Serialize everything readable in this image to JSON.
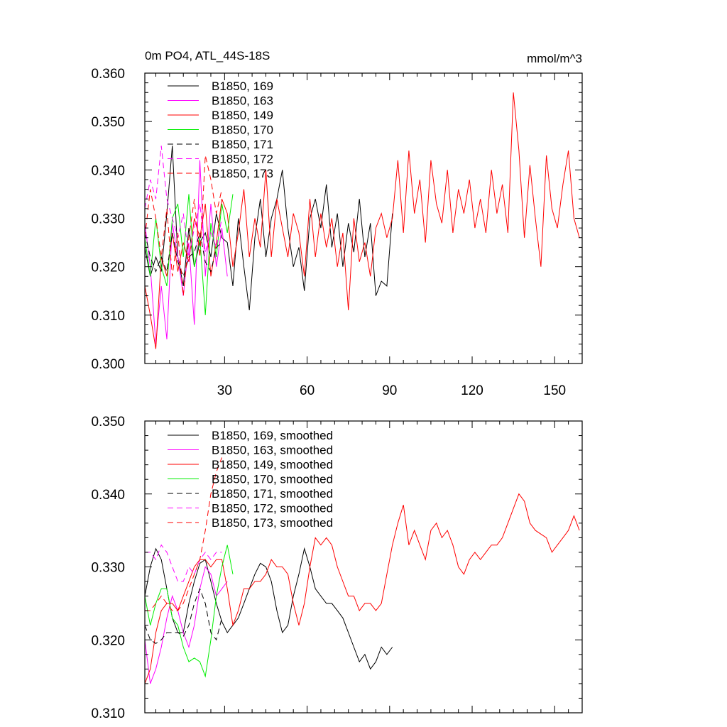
{
  "chart_data": [
    {
      "type": "line",
      "title": "0m PO4, ATL_44S-18S",
      "units": "mmol/m^3",
      "xlabel": "",
      "ylabel": "",
      "xlim": [
        1,
        160
      ],
      "ylim": [
        0.3,
        0.36
      ],
      "xticks": [
        30,
        60,
        90,
        120,
        150
      ],
      "xtick_labels": [
        "30",
        "60",
        "90",
        "120",
        "150"
      ],
      "yticks": [
        0.3,
        0.31,
        0.32,
        0.33,
        0.34,
        0.35,
        0.36
      ],
      "ytick_labels": [
        "0.300",
        "0.310",
        "0.320",
        "0.330",
        "0.340",
        "0.350",
        "0.360"
      ],
      "legend": "top-left",
      "series": [
        {
          "name": "B1850, 169",
          "color": "#000000",
          "dash": "solid",
          "x": [
            1,
            3,
            5,
            7,
            9,
            11,
            13,
            15,
            17,
            19,
            21,
            23,
            25,
            27,
            29,
            31,
            33,
            35,
            37,
            39,
            41,
            43,
            45,
            47,
            49,
            51,
            53,
            55,
            57,
            59,
            61,
            63,
            65,
            67,
            69,
            71,
            73,
            75,
            77,
            79,
            81,
            83,
            85,
            87,
            89,
            91
          ],
          "y": [
            0.324,
            0.318,
            0.322,
            0.319,
            0.331,
            0.345,
            0.322,
            0.316,
            0.328,
            0.32,
            0.325,
            0.327,
            0.322,
            0.331,
            0.326,
            0.325,
            0.316,
            0.33,
            0.32,
            0.311,
            0.326,
            0.334,
            0.322,
            0.33,
            0.334,
            0.34,
            0.328,
            0.32,
            0.324,
            0.315,
            0.33,
            0.334,
            0.328,
            0.337,
            0.324,
            0.331,
            0.32,
            0.329,
            0.323,
            0.334,
            0.322,
            0.329,
            0.314,
            0.317,
            0.316,
            0.331
          ]
        },
        {
          "name": "B1850, 163",
          "color": "#ff00ff",
          "dash": "solid",
          "x": [
            1,
            3,
            5,
            7,
            9,
            11,
            13,
            15,
            17,
            19,
            21,
            23,
            25,
            27,
            29,
            31
          ],
          "y": [
            0.329,
            0.32,
            0.304,
            0.316,
            0.305,
            0.329,
            0.322,
            0.314,
            0.325,
            0.308,
            0.342,
            0.318,
            0.333,
            0.32,
            0.328,
            0.318
          ]
        },
        {
          "name": "B1850, 149",
          "color": "#ff0000",
          "dash": "solid",
          "x": [
            1,
            3,
            5,
            7,
            9,
            11,
            13,
            15,
            17,
            19,
            21,
            23,
            25,
            27,
            29,
            31,
            33,
            35,
            37,
            39,
            41,
            43,
            45,
            47,
            49,
            51,
            53,
            55,
            57,
            59,
            61,
            63,
            65,
            67,
            69,
            71,
            73,
            75,
            77,
            79,
            81,
            83,
            85,
            87,
            89,
            91,
            93,
            95,
            97,
            99,
            101,
            103,
            105,
            107,
            109,
            111,
            113,
            115,
            117,
            119,
            121,
            123,
            125,
            127,
            129,
            131,
            133,
            135,
            137,
            139,
            141,
            143,
            145,
            147,
            149,
            151,
            153,
            155,
            157,
            159
          ],
          "y": [
            0.316,
            0.31,
            0.303,
            0.322,
            0.318,
            0.327,
            0.319,
            0.325,
            0.321,
            0.33,
            0.326,
            0.333,
            0.318,
            0.325,
            0.334,
            0.331,
            0.32,
            0.327,
            0.336,
            0.322,
            0.33,
            0.324,
            0.34,
            0.322,
            0.334,
            0.328,
            0.322,
            0.331,
            0.327,
            0.318,
            0.334,
            0.322,
            0.331,
            0.324,
            0.33,
            0.32,
            0.327,
            0.311,
            0.33,
            0.321,
            0.325,
            0.318,
            0.328,
            0.331,
            0.326,
            0.33,
            0.342,
            0.327,
            0.344,
            0.331,
            0.338,
            0.325,
            0.342,
            0.333,
            0.329,
            0.34,
            0.327,
            0.336,
            0.331,
            0.338,
            0.328,
            0.334,
            0.327,
            0.34,
            0.331,
            0.337,
            0.327,
            0.356,
            0.344,
            0.326,
            0.341,
            0.33,
            0.32,
            0.343,
            0.332,
            0.328,
            0.337,
            0.344,
            0.33,
            0.326
          ]
        },
        {
          "name": "B1850, 170",
          "color": "#00ee00",
          "dash": "solid",
          "x": [
            1,
            3,
            5,
            7,
            9,
            11,
            13,
            15,
            17,
            19,
            21,
            23,
            25,
            27,
            29,
            31,
            33
          ],
          "y": [
            0.326,
            0.318,
            0.33,
            0.32,
            0.316,
            0.33,
            0.333,
            0.322,
            0.335,
            0.32,
            0.326,
            0.31,
            0.329,
            0.322,
            0.333,
            0.327,
            0.335
          ]
        },
        {
          "name": "B1850, 171",
          "color": "#000000",
          "dash": "dashed",
          "x": [
            1,
            3,
            5,
            7,
            9,
            11,
            13,
            15,
            17,
            19,
            21,
            23,
            25,
            27,
            29
          ],
          "y": [
            0.327,
            0.322,
            0.319,
            0.322,
            0.319,
            0.327,
            0.321,
            0.318,
            0.322,
            0.323,
            0.327,
            0.321,
            0.319,
            0.324,
            0.325
          ]
        },
        {
          "name": "B1850, 172",
          "color": "#ff00ff",
          "dash": "dashed",
          "x": [
            1,
            3,
            5,
            7,
            9,
            11,
            13,
            15,
            17,
            19,
            21,
            23,
            25,
            27,
            29
          ],
          "y": [
            0.332,
            0.338,
            0.334,
            0.345,
            0.334,
            0.33,
            0.326,
            0.331,
            0.322,
            0.328,
            0.333,
            0.323,
            0.327,
            0.324,
            0.33
          ]
        },
        {
          "name": "B1850, 173",
          "color": "#ff0000",
          "dash": "dashed",
          "x": [
            1,
            3,
            5,
            7,
            9,
            11,
            13,
            15,
            17,
            19,
            21,
            23,
            25,
            27,
            29
          ],
          "y": [
            0.326,
            0.336,
            0.33,
            0.322,
            0.332,
            0.318,
            0.327,
            0.314,
            0.326,
            0.334,
            0.322,
            0.343,
            0.338,
            0.331,
            0.336
          ]
        }
      ]
    },
    {
      "type": "line",
      "title": "",
      "xlabel": "",
      "ylabel": "",
      "xlim": [
        1,
        160
      ],
      "ylim": [
        0.31,
        0.35
      ],
      "xticks": [
        30,
        60,
        90,
        120,
        150
      ],
      "xtick_labels": [],
      "yticks": [
        0.31,
        0.32,
        0.33,
        0.34,
        0.35
      ],
      "ytick_labels": [
        "0.310",
        "0.320",
        "0.330",
        "0.340",
        "0.350"
      ],
      "legend": "top-left",
      "series": [
        {
          "name": "B1850, 169, smoothed",
          "color": "#000000",
          "dash": "solid",
          "x": [
            1,
            3,
            5,
            7,
            9,
            11,
            13,
            15,
            17,
            19,
            21,
            23,
            25,
            27,
            29,
            31,
            33,
            35,
            37,
            39,
            41,
            43,
            45,
            47,
            49,
            51,
            53,
            55,
            57,
            59,
            61,
            63,
            65,
            67,
            69,
            71,
            73,
            75,
            77,
            79,
            81,
            83,
            85,
            87,
            89,
            91
          ],
          "y": [
            0.326,
            0.33,
            0.3325,
            0.331,
            0.327,
            0.323,
            0.321,
            0.321,
            0.325,
            0.328,
            0.3305,
            0.331,
            0.328,
            0.325,
            0.3225,
            0.321,
            0.322,
            0.323,
            0.325,
            0.327,
            0.329,
            0.3305,
            0.33,
            0.328,
            0.324,
            0.321,
            0.322,
            0.326,
            0.329,
            0.3325,
            0.33,
            0.327,
            0.326,
            0.325,
            0.325,
            0.324,
            0.323,
            0.321,
            0.319,
            0.317,
            0.318,
            0.316,
            0.317,
            0.319,
            0.318,
            0.319
          ]
        },
        {
          "name": "B1850, 163, smoothed",
          "color": "#ff00ff",
          "dash": "solid",
          "x": [
            1,
            3,
            5,
            7,
            9,
            11,
            13,
            15,
            17,
            19,
            21,
            23,
            25,
            27,
            29,
            31
          ],
          "y": [
            0.32,
            0.314,
            0.316,
            0.319,
            0.323,
            0.326,
            0.324,
            0.321,
            0.319,
            0.322,
            0.327,
            0.33,
            0.329,
            0.326,
            0.327,
            0.328
          ]
        },
        {
          "name": "B1850, 149, smoothed",
          "color": "#ff0000",
          "dash": "solid",
          "x": [
            1,
            3,
            5,
            7,
            9,
            11,
            13,
            15,
            17,
            19,
            21,
            23,
            25,
            27,
            29,
            31,
            33,
            35,
            37,
            39,
            41,
            43,
            45,
            47,
            49,
            51,
            53,
            55,
            57,
            59,
            61,
            63,
            65,
            67,
            69,
            71,
            73,
            75,
            77,
            79,
            81,
            83,
            85,
            87,
            89,
            91,
            93,
            95,
            97,
            99,
            101,
            103,
            105,
            107,
            109,
            111,
            113,
            115,
            117,
            119,
            121,
            123,
            125,
            127,
            129,
            131,
            133,
            135,
            137,
            139,
            141,
            143,
            145,
            147,
            149,
            151,
            153,
            155,
            157,
            159
          ],
          "y": [
            0.314,
            0.316,
            0.321,
            0.324,
            0.325,
            0.325,
            0.324,
            0.326,
            0.328,
            0.33,
            0.331,
            0.331,
            0.33,
            0.331,
            0.331,
            0.327,
            0.322,
            0.324,
            0.327,
            0.327,
            0.328,
            0.328,
            0.329,
            0.331,
            0.33,
            0.33,
            0.329,
            0.325,
            0.322,
            0.325,
            0.33,
            0.334,
            0.333,
            0.334,
            0.333,
            0.33,
            0.328,
            0.326,
            0.326,
            0.324,
            0.325,
            0.325,
            0.324,
            0.325,
            0.329,
            0.333,
            0.336,
            0.3385,
            0.333,
            0.335,
            0.333,
            0.331,
            0.335,
            0.336,
            0.334,
            0.335,
            0.333,
            0.33,
            0.329,
            0.331,
            0.332,
            0.331,
            0.332,
            0.333,
            0.333,
            0.334,
            0.336,
            0.338,
            0.34,
            0.339,
            0.336,
            0.335,
            0.3345,
            0.334,
            0.332,
            0.333,
            0.334,
            0.335,
            0.337,
            0.335
          ]
        },
        {
          "name": "B1850, 170, smoothed",
          "color": "#00ee00",
          "dash": "solid",
          "x": [
            1,
            3,
            5,
            7,
            9,
            11,
            13,
            15,
            17,
            19,
            21,
            23,
            25,
            27,
            29,
            31,
            33
          ],
          "y": [
            0.326,
            0.322,
            0.325,
            0.327,
            0.327,
            0.323,
            0.322,
            0.319,
            0.317,
            0.3175,
            0.317,
            0.315,
            0.32,
            0.326,
            0.33,
            0.333,
            0.329
          ]
        },
        {
          "name": "B1850, 171, smoothed",
          "color": "#000000",
          "dash": "dashed",
          "x": [
            1,
            3,
            5,
            7,
            9,
            11,
            13,
            15,
            17,
            19,
            21,
            23,
            25,
            27,
            29
          ],
          "y": [
            0.322,
            0.32,
            0.3195,
            0.32,
            0.321,
            0.321,
            0.321,
            0.3205,
            0.322,
            0.325,
            0.327,
            0.325,
            0.321,
            0.32,
            0.323
          ]
        },
        {
          "name": "B1850, 172, smoothed",
          "color": "#ff00ff",
          "dash": "dashed",
          "x": [
            1,
            3,
            5,
            7,
            9,
            11,
            13,
            15,
            17,
            19,
            21,
            23,
            25,
            27,
            29
          ],
          "y": [
            0.332,
            0.332,
            0.331,
            0.333,
            0.332,
            0.33,
            0.328,
            0.328,
            0.33,
            0.329,
            0.331,
            0.332,
            0.331,
            0.332,
            0.332
          ]
        },
        {
          "name": "B1850, 173, smoothed",
          "color": "#ff0000",
          "dash": "dashed",
          "x": [
            1,
            3,
            5,
            7,
            9,
            11,
            13,
            15,
            17,
            19,
            21,
            23,
            25,
            27,
            29
          ],
          "y": [
            0.324,
            0.324,
            0.325,
            0.326,
            0.325,
            0.324,
            0.324,
            0.325,
            0.327,
            0.329,
            0.331,
            0.335,
            0.34,
            0.343,
            0.345
          ]
        }
      ]
    }
  ]
}
